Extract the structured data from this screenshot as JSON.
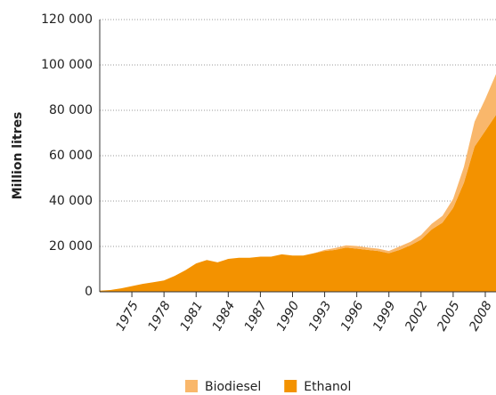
{
  "chart_data": {
    "type": "stacked_area",
    "ylabel": "Million litres",
    "x": [
      1972,
      1973,
      1974,
      1975,
      1976,
      1977,
      1978,
      1979,
      1980,
      1981,
      1982,
      1983,
      1984,
      1985,
      1986,
      1987,
      1988,
      1989,
      1990,
      1991,
      1992,
      1993,
      1994,
      1995,
      1996,
      1997,
      1998,
      1999,
      2000,
      2001,
      2002,
      2003,
      2004,
      2005,
      2006,
      2007,
      2008,
      2009
    ],
    "series": [
      {
        "name": "Ethanol",
        "color": "#f39200",
        "values": [
          500,
          800,
          1500,
          2500,
          3500,
          4200,
          5000,
          7000,
          9500,
          12500,
          14000,
          13000,
          14500,
          15000,
          15000,
          15500,
          15500,
          16500,
          16000,
          16000,
          17000,
          18000,
          18500,
          19500,
          19000,
          18500,
          18000,
          17000,
          18500,
          20500,
          23000,
          27500,
          30500,
          37000,
          48000,
          64000,
          71000,
          78000
        ]
      },
      {
        "name": "Biodiesel",
        "color": "#f9b76b",
        "values": [
          0,
          0,
          0,
          0,
          0,
          0,
          0,
          0,
          0,
          0,
          0,
          0,
          0,
          0,
          0,
          0,
          0,
          0,
          0,
          0,
          0,
          500,
          800,
          1000,
          1200,
          1000,
          1000,
          1000,
          1500,
          1500,
          2000,
          2500,
          3000,
          4000,
          7000,
          11000,
          14000,
          18000
        ]
      }
    ],
    "xlim": [
      1972,
      2009
    ],
    "xticks": [
      1975,
      1978,
      1981,
      1984,
      1987,
      1990,
      1993,
      1996,
      1999,
      2002,
      2005,
      2008
    ],
    "ylim": [
      0,
      120000
    ],
    "yticks": [
      0,
      {
        "value": 20000,
        "label": "20 000"
      },
      {
        "value": 40000,
        "label": "40 000"
      },
      {
        "value": 60000,
        "label": "60 000"
      },
      {
        "value": 80000,
        "label": "80 000"
      },
      {
        "value": 100000,
        "label": "100 000"
      },
      {
        "value": 120000,
        "label": "120 000"
      }
    ],
    "grid": true
  }
}
